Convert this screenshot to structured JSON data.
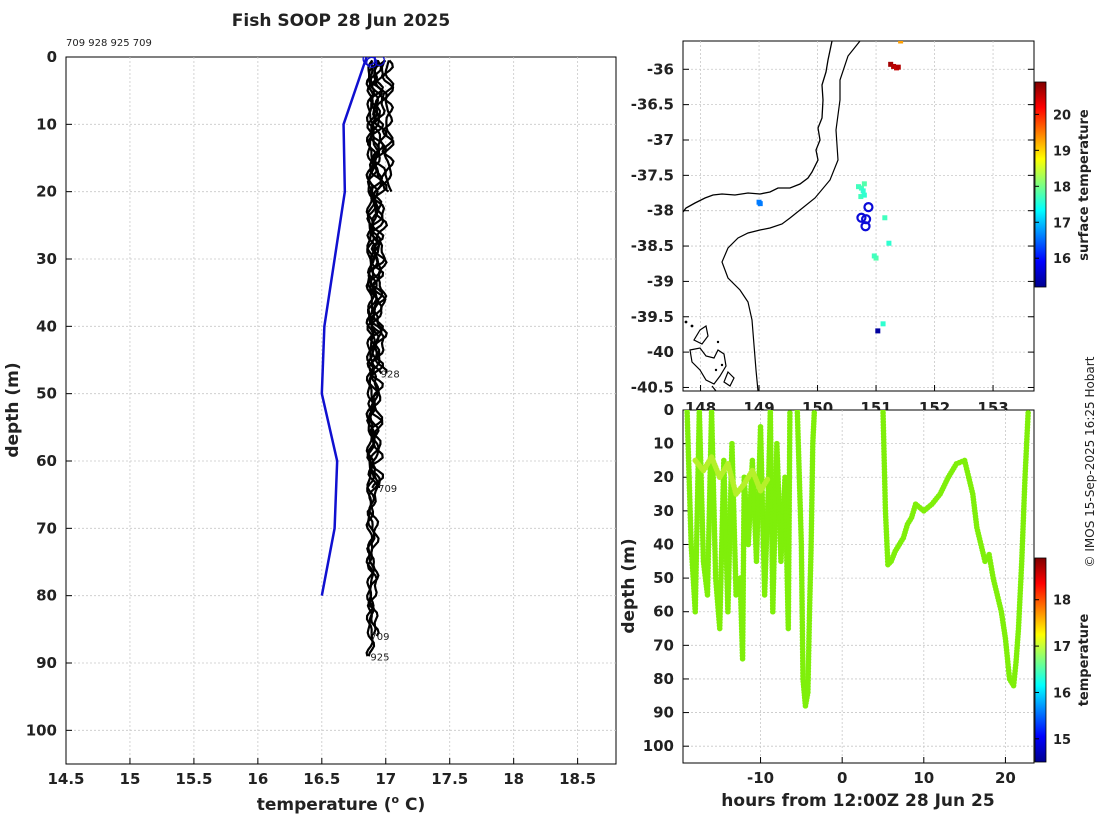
{
  "chart_data": [
    {
      "type": "line",
      "title": "Fish SOOP 28 Jun 2025",
      "xlabel": "temperature (",
      "xlabel_sup": "o",
      "xlabel_tail": " C)",
      "ylabel": "depth (m)",
      "xlim": [
        14.5,
        18.8
      ],
      "ylim": [
        0,
        105
      ],
      "xticks": [
        14.5,
        15,
        15.5,
        16,
        16.5,
        17,
        17.5,
        18,
        18.5
      ],
      "yticks": [
        0,
        10,
        20,
        30,
        40,
        50,
        60,
        70,
        80,
        90,
        100
      ],
      "header_ids": "709 928 925 709",
      "reference_profile": {
        "color": "#1010d0",
        "temperature": [
          16.85,
          16.67,
          16.68,
          16.52,
          16.5,
          16.62,
          16.6,
          16.55,
          16.5
        ],
        "depth": [
          0,
          10,
          20,
          40,
          50,
          60,
          70,
          75,
          80
        ]
      },
      "profile_labels": [
        {
          "text": "928",
          "temperature": 16.96,
          "depth": 47
        },
        {
          "text": "709",
          "temperature": 16.94,
          "depth": 64
        },
        {
          "text": "709",
          "temperature": 16.88,
          "depth": 86
        },
        {
          "text": "925",
          "temperature": 16.88,
          "depth": 89
        }
      ],
      "series": [
        {
          "name": "709",
          "max_depth": 86,
          "base": 16.9,
          "amp": 0.03
        },
        {
          "name": "928",
          "max_depth": 47,
          "base": 16.95,
          "amp": 0.04
        },
        {
          "name": "925",
          "max_depth": 89,
          "base": 16.88,
          "amp": 0.02
        },
        {
          "name": "709",
          "max_depth": 64,
          "base": 16.93,
          "amp": 0.035
        },
        {
          "name": "",
          "max_depth": 20,
          "base": 17.02,
          "amp": 0.03
        }
      ]
    },
    {
      "type": "scatter",
      "ylim": [
        -40.55,
        -35.6
      ],
      "xlim": [
        147.7,
        153.7
      ],
      "yticks": [
        -36,
        -36.5,
        -37,
        -37.5,
        -38,
        -38.5,
        -39,
        -39.5,
        -40,
        -40.5
      ],
      "xticks": [
        148,
        149,
        150,
        151,
        152,
        153
      ],
      "xtick_labels": [
        "148",
        "149",
        "150",
        "151",
        "152",
        "153"
      ],
      "colorbar_label": "surface temperature",
      "colorbar_ticks": [
        16,
        17,
        18,
        19,
        20
      ],
      "colorbar_range": [
        15.2,
        20.9
      ],
      "points": [
        {
          "lon": 151.25,
          "lat": -35.93,
          "t": 20.7
        },
        {
          "lon": 151.3,
          "lat": -35.96,
          "t": 20.6
        },
        {
          "lon": 151.35,
          "lat": -35.98,
          "t": 20.5
        },
        {
          "lon": 151.38,
          "lat": -35.97,
          "t": 20.6
        },
        {
          "lon": 151.42,
          "lat": -35.6,
          "t": 19.3
        },
        {
          "lon": 149.0,
          "lat": -37.88,
          "t": 16.6
        },
        {
          "lon": 149.02,
          "lat": -37.9,
          "t": 16.6
        },
        {
          "lon": 150.75,
          "lat": -37.68,
          "t": 17.7
        },
        {
          "lon": 150.8,
          "lat": -37.62,
          "t": 17.8
        },
        {
          "lon": 150.78,
          "lat": -37.72,
          "t": 17.6
        },
        {
          "lon": 150.74,
          "lat": -37.8,
          "t": 17.7
        },
        {
          "lon": 150.8,
          "lat": -37.78,
          "t": 17.6
        },
        {
          "lon": 150.7,
          "lat": -37.66,
          "t": 17.7
        },
        {
          "lon": 151.15,
          "lat": -38.1,
          "t": 17.7
        },
        {
          "lon": 151.22,
          "lat": -38.46,
          "t": 17.6
        },
        {
          "lon": 151.0,
          "lat": -38.67,
          "t": 17.8
        },
        {
          "lon": 150.97,
          "lat": -38.64,
          "t": 17.7
        },
        {
          "lon": 151.12,
          "lat": -39.6,
          "t": 17.6
        },
        {
          "lon": 151.03,
          "lat": -39.7,
          "t": 15.3
        }
      ],
      "stations": [
        {
          "lon": 150.87,
          "lat": -37.95
        },
        {
          "lon": 150.75,
          "lat": -38.1
        },
        {
          "lon": 150.83,
          "lat": -38.12
        },
        {
          "lon": 150.82,
          "lat": -38.22
        }
      ]
    },
    {
      "type": "scatter",
      "xlabel": "hours from 12:00Z 28 Jun 25",
      "ylabel": "depth (m)",
      "xlim": [
        -19.5,
        23.5
      ],
      "ylim": [
        0,
        105
      ],
      "xticks": [
        -10,
        0,
        10,
        20
      ],
      "yticks": [
        0,
        10,
        20,
        30,
        40,
        50,
        60,
        70,
        80,
        90,
        100
      ],
      "colorbar_label": "temperature",
      "colorbar_ticks": [
        15,
        16,
        17,
        18
      ],
      "colorbar_range": [
        14.5,
        18.9
      ],
      "tracks": [
        {
          "t": [
            -19,
            -18.5,
            -18,
            -17.5,
            -17,
            -16.5,
            -16,
            -15.5,
            -15,
            -14.5,
            -14,
            -13.5,
            -13,
            -12.5,
            -12.2,
            -12,
            -11.5,
            -11
          ],
          "d": [
            0,
            40,
            60,
            0,
            45,
            55,
            0,
            50,
            65,
            15,
            60,
            10,
            55,
            50,
            74,
            20,
            40,
            15
          ]
        },
        {
          "t": [
            -11,
            -10.5,
            -10,
            -9.5,
            -9,
            -8.8,
            -8.5,
            -8,
            -7.5,
            -7,
            -6.6,
            -6.4
          ],
          "d": [
            15,
            45,
            5,
            55,
            20,
            0,
            60,
            10,
            45,
            20,
            65,
            0
          ]
        },
        {
          "t": [
            -5.5,
            -5,
            -4.8,
            -4.5,
            -4.2,
            -4,
            -3.8,
            -3.6,
            -3.4
          ],
          "d": [
            0,
            40,
            80,
            88,
            84,
            60,
            40,
            10,
            0
          ]
        },
        {
          "t": [
            5,
            5.3,
            5.6,
            6,
            6.5,
            7,
            7.5,
            8,
            8.5,
            9,
            10,
            11,
            12,
            13,
            14,
            15,
            16,
            16.5,
            17,
            17.5,
            18,
            18.5,
            19,
            19.5,
            20,
            20.5,
            21,
            21.3,
            21.6,
            22,
            22.4,
            22.8
          ],
          "d": [
            0,
            30,
            46,
            45,
            42,
            40,
            38,
            34,
            32,
            28,
            30,
            28,
            25,
            20,
            16,
            15,
            25,
            35,
            40,
            45,
            43,
            50,
            55,
            60,
            68,
            80,
            82,
            75,
            65,
            45,
            20,
            0
          ]
        }
      ],
      "warm_track": {
        "t": [
          -18,
          -17,
          -16,
          -15,
          -14,
          -13,
          -12,
          -11,
          -10,
          -9
        ],
        "d": [
          15,
          18,
          14,
          20,
          16,
          25,
          22,
          18,
          24,
          20
        ]
      }
    }
  ],
  "watermark": "© IMOS 15-Sep-2025 16:25 Hobart"
}
